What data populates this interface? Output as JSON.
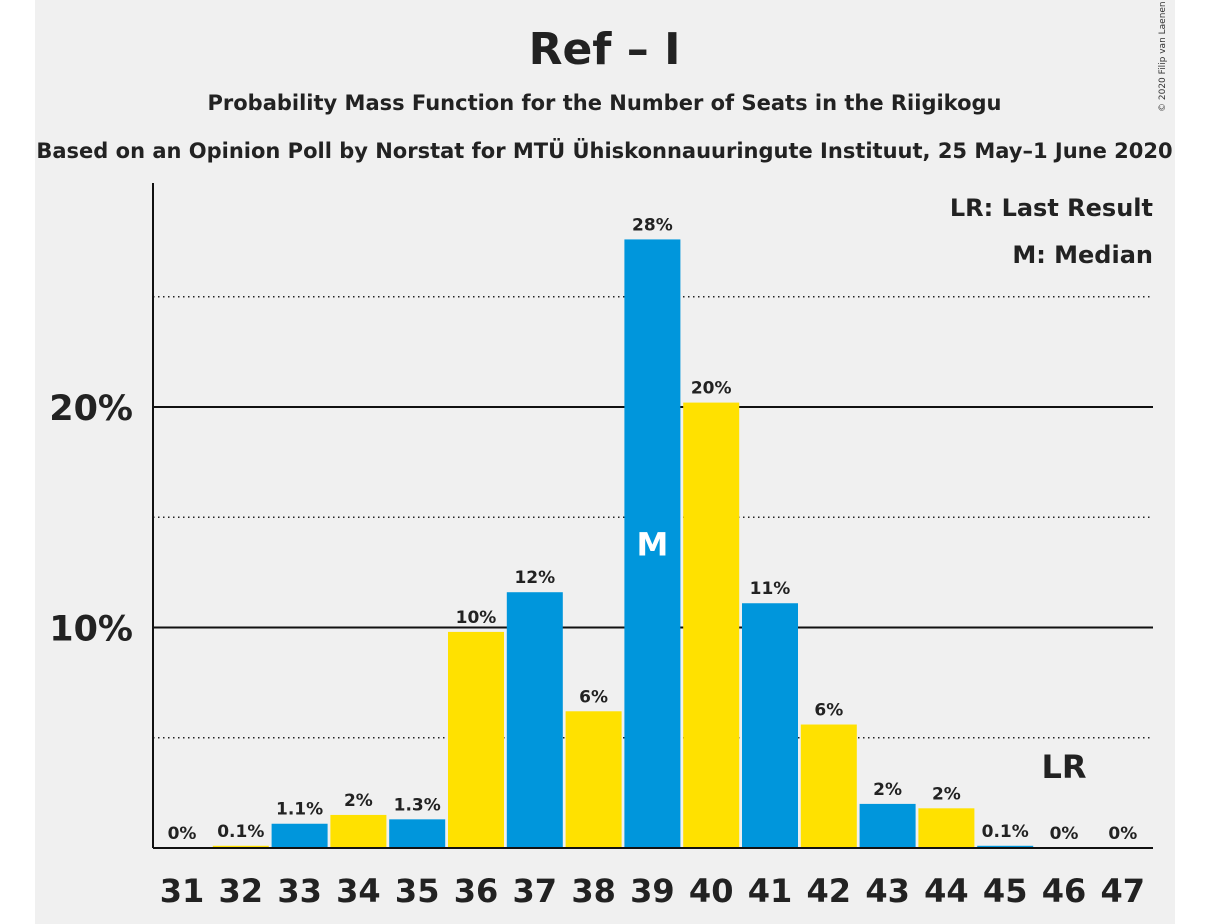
{
  "chart_data": {
    "type": "bar",
    "title": "Ref – I",
    "subtitle": "Probability Mass Function for the Number of Seats in the Riigikogu",
    "source": "Based on an Opinion Poll by Norstat for MTÜ Ühiskonnauuringute Instituut, 25 May–1 June 2020",
    "copyright": "© 2020 Filip van Laenen",
    "categories": [
      "31",
      "32",
      "33",
      "34",
      "35",
      "36",
      "37",
      "38",
      "39",
      "40",
      "41",
      "42",
      "43",
      "44",
      "45",
      "46",
      "47"
    ],
    "values": [
      0,
      0.1,
      1.1,
      1.5,
      1.3,
      9.8,
      11.6,
      6.2,
      27.6,
      20.2,
      11.1,
      5.6,
      2.0,
      1.8,
      0.1,
      0,
      0
    ],
    "data_labels": [
      "0%",
      "0.1%",
      "1.1%",
      "2%",
      "1.3%",
      "10%",
      "12%",
      "6%",
      "28%",
      "20%",
      "11%",
      "6%",
      "2%",
      "2%",
      "0.1%",
      "0%",
      "0%"
    ],
    "bar_colors": [
      "#0096dc",
      "#ffe100",
      "#0096dc",
      "#ffe100",
      "#0096dc",
      "#ffe100",
      "#0096dc",
      "#ffe100",
      "#0096dc",
      "#ffe100",
      "#0096dc",
      "#ffe100",
      "#0096dc",
      "#ffe100",
      "#0096dc",
      "#ffe100",
      "#0096dc"
    ],
    "ylim": [
      0,
      30
    ],
    "yticks_major": [
      10,
      20
    ],
    "ytick_labels": [
      "10%",
      "20%"
    ],
    "yticks_minor": [
      5,
      15,
      25
    ],
    "median": {
      "category": "39",
      "label": "M"
    },
    "last_result": {
      "category": "46",
      "label": "LR"
    },
    "legend": [
      "LR: Last Result",
      "M: Median"
    ],
    "legend_position": "top-right",
    "grid": "major solid, minor dotted"
  }
}
